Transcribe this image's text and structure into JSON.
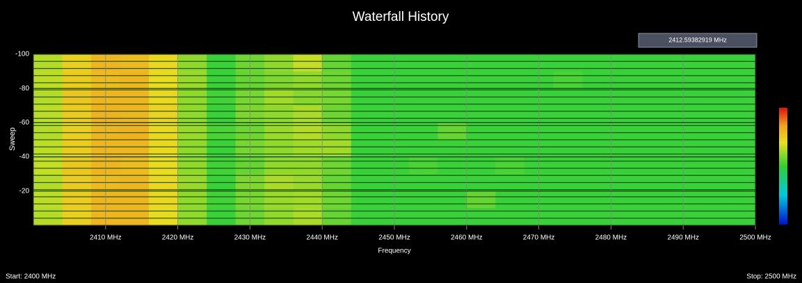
{
  "chart_data": {
    "type": "heatmap",
    "title": "Waterfall History",
    "readout": "2412.59382919 MHz",
    "xlabel": "Frequency",
    "ylabel": "Sweep",
    "start_label": "Start: 2400 MHz",
    "stop_label": "Stop: 2500 MHz",
    "xlim": [
      2400,
      2500
    ],
    "ylim": [
      -100,
      0
    ],
    "xticks": [
      {
        "value": 2410,
        "label": "2410 MHz"
      },
      {
        "value": 2420,
        "label": "2420 MHz"
      },
      {
        "value": 2430,
        "label": "2430 MHz"
      },
      {
        "value": 2440,
        "label": "2440 MHz"
      },
      {
        "value": 2450,
        "label": "2450 MHz"
      },
      {
        "value": 2460,
        "label": "2460 MHz"
      },
      {
        "value": 2470,
        "label": "2470 MHz"
      },
      {
        "value": 2480,
        "label": "2480 MHz"
      },
      {
        "value": 2490,
        "label": "2490 MHz"
      },
      {
        "value": 2500,
        "label": "2500 MHz"
      }
    ],
    "yticks": [
      -100,
      -80,
      -60,
      -40,
      -20
    ],
    "grid": true,
    "xbins": [
      2400,
      2404,
      2408,
      2412,
      2416,
      2420,
      2424,
      2428,
      2432,
      2436,
      2440,
      2444,
      2448,
      2452,
      2456,
      2460,
      2464,
      2468,
      2472,
      2476,
      2480,
      2484,
      2488,
      2492,
      2496,
      2500
    ],
    "ybins": [
      -100,
      -90,
      -80,
      -70,
      -60,
      -50,
      -40,
      -30,
      -20,
      -10,
      0
    ],
    "z": [
      [
        0.64,
        0.74,
        0.8,
        0.79,
        0.72,
        0.6,
        0.5,
        0.56,
        0.6,
        0.66,
        0.55,
        0.5,
        0.5,
        0.5,
        0.5,
        0.5,
        0.5,
        0.5,
        0.5,
        0.5,
        0.5,
        0.5,
        0.5,
        0.5,
        0.5
      ],
      [
        0.65,
        0.75,
        0.79,
        0.8,
        0.71,
        0.61,
        0.5,
        0.55,
        0.58,
        0.6,
        0.56,
        0.5,
        0.5,
        0.5,
        0.5,
        0.5,
        0.5,
        0.5,
        0.52,
        0.5,
        0.5,
        0.5,
        0.5,
        0.5,
        0.5
      ],
      [
        0.64,
        0.76,
        0.8,
        0.8,
        0.72,
        0.6,
        0.51,
        0.57,
        0.62,
        0.59,
        0.57,
        0.5,
        0.5,
        0.5,
        0.5,
        0.5,
        0.5,
        0.5,
        0.5,
        0.5,
        0.5,
        0.5,
        0.5,
        0.5,
        0.5
      ],
      [
        0.65,
        0.75,
        0.81,
        0.8,
        0.73,
        0.6,
        0.5,
        0.58,
        0.6,
        0.63,
        0.56,
        0.5,
        0.5,
        0.5,
        0.5,
        0.5,
        0.5,
        0.5,
        0.5,
        0.5,
        0.5,
        0.5,
        0.5,
        0.5,
        0.5
      ],
      [
        0.64,
        0.74,
        0.8,
        0.81,
        0.72,
        0.61,
        0.52,
        0.56,
        0.61,
        0.64,
        0.6,
        0.5,
        0.5,
        0.5,
        0.55,
        0.5,
        0.5,
        0.5,
        0.5,
        0.5,
        0.5,
        0.5,
        0.5,
        0.5,
        0.5
      ],
      [
        0.65,
        0.75,
        0.8,
        0.8,
        0.72,
        0.6,
        0.5,
        0.57,
        0.6,
        0.62,
        0.62,
        0.5,
        0.5,
        0.5,
        0.5,
        0.5,
        0.5,
        0.5,
        0.5,
        0.5,
        0.5,
        0.5,
        0.5,
        0.5,
        0.5
      ],
      [
        0.66,
        0.76,
        0.8,
        0.79,
        0.71,
        0.6,
        0.51,
        0.55,
        0.6,
        0.6,
        0.56,
        0.5,
        0.5,
        0.52,
        0.5,
        0.5,
        0.52,
        0.5,
        0.5,
        0.5,
        0.5,
        0.5,
        0.5,
        0.5,
        0.5
      ],
      [
        0.64,
        0.75,
        0.79,
        0.8,
        0.72,
        0.61,
        0.5,
        0.58,
        0.63,
        0.61,
        0.55,
        0.5,
        0.5,
        0.5,
        0.5,
        0.5,
        0.5,
        0.5,
        0.5,
        0.5,
        0.5,
        0.5,
        0.5,
        0.5,
        0.5
      ],
      [
        0.65,
        0.75,
        0.8,
        0.8,
        0.72,
        0.6,
        0.51,
        0.57,
        0.61,
        0.62,
        0.56,
        0.5,
        0.5,
        0.5,
        0.5,
        0.55,
        0.5,
        0.5,
        0.5,
        0.5,
        0.5,
        0.5,
        0.5,
        0.5,
        0.5
      ],
      [
        0.64,
        0.74,
        0.8,
        0.8,
        0.71,
        0.6,
        0.5,
        0.56,
        0.6,
        0.63,
        0.55,
        0.5,
        0.5,
        0.5,
        0.5,
        0.5,
        0.5,
        0.5,
        0.5,
        0.5,
        0.5,
        0.5,
        0.5,
        0.5,
        0.5
      ]
    ]
  }
}
